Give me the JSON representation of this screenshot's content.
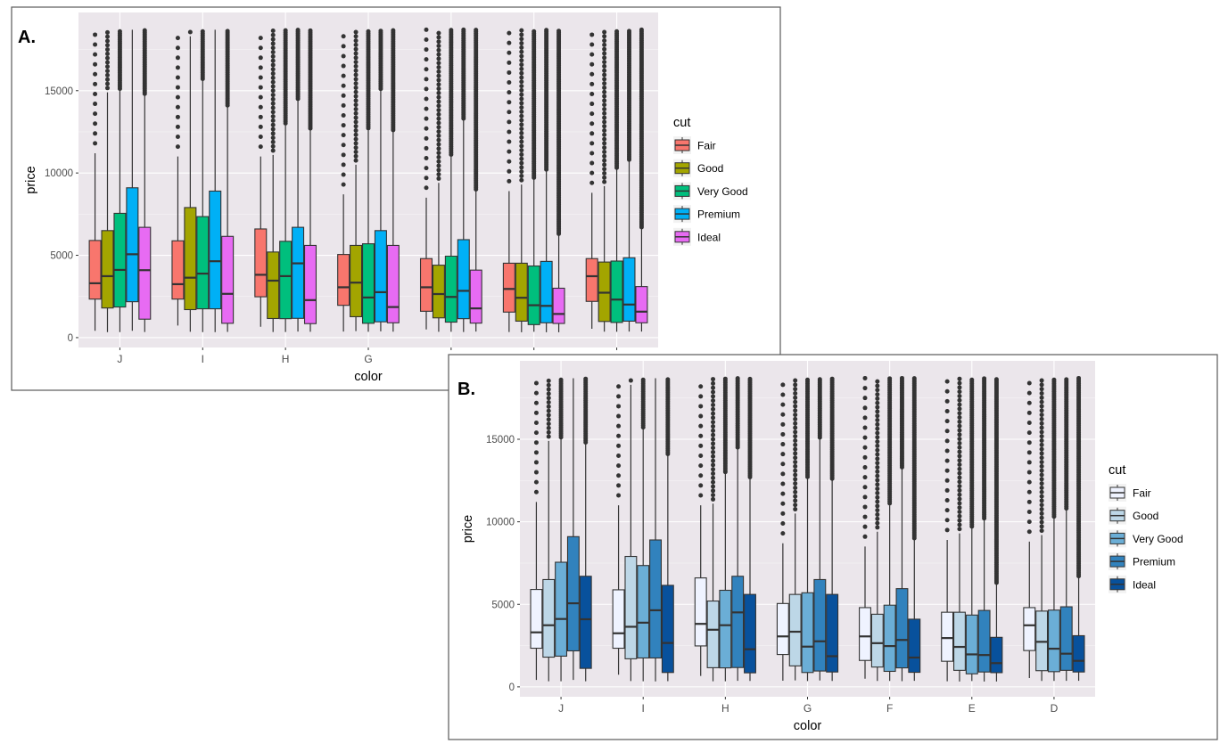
{
  "chart_data": [
    {
      "type": "boxplot",
      "panel_label": "A.",
      "xlabel": "color",
      "ylabel": "price",
      "categories": [
        "J",
        "I",
        "H",
        "G",
        "F",
        "E",
        "D"
      ],
      "yticks": [
        0,
        5000,
        10000,
        15000
      ],
      "ylim": [
        -600,
        19750
      ],
      "grid": true,
      "legend": {
        "title": "cut",
        "position": "right"
      },
      "series": [
        {
          "name": "Fair",
          "color": "#F8766D",
          "boxes": [
            [
              416,
              2340,
              3302,
              5900,
              11200
            ],
            [
              735,
              2340,
              3246,
              5880,
              11000
            ],
            [
              659,
              2480,
              3816,
              6600,
              11000
            ],
            [
              369,
              1960,
              3057,
              5050,
              8700
            ],
            [
              496,
              1600,
              3057,
              4800,
              8500
            ],
            [
              337,
              1550,
              2956,
              4520,
              8900
            ],
            [
              536,
              2200,
              3730,
              4800,
              8800
            ]
          ]
        },
        {
          "name": "Good",
          "color": "#A3A500",
          "boxes": [
            [
              335,
              1800,
              3733,
              6500,
              14900
            ],
            [
              351,
              1700,
              3640,
              7900,
              18300
            ],
            [
              337,
              1160,
              3460,
              5200,
              11100
            ],
            [
              394,
              1270,
              3340,
              5600,
              10500
            ],
            [
              357,
              1200,
              2647,
              4400,
              9400
            ],
            [
              327,
              1000,
              2420,
              4520,
              9300
            ],
            [
              361,
              980,
              2728,
              4590,
              9200
            ]
          ]
        },
        {
          "name": "Very Good",
          "color": "#00BF7D",
          "boxes": [
            [
              336,
              1860,
              4113,
              7550,
              15000
            ],
            [
              336,
              1750,
              3888,
              7350,
              15600
            ],
            [
              337,
              1150,
              3735,
              5850,
              12900
            ],
            [
              354,
              870,
              2437,
              5700,
              12600
            ],
            [
              357,
              940,
              2471,
              4950,
              11000
            ],
            [
              352,
              790,
              1967,
              4350,
              9600
            ],
            [
              357,
              920,
              2311,
              4650,
              10200
            ]
          ]
        },
        {
          "name": "Premium",
          "color": "#00B0F6",
          "boxes": [
            [
              416,
              2180,
              5063,
              9100,
              18700
            ],
            [
              334,
              1750,
              4640,
              8900,
              18700
            ],
            [
              368,
              1170,
              4511,
              6700,
              14400
            ],
            [
              382,
              960,
              2760,
              6500,
              15000
            ],
            [
              342,
              1150,
              2841,
              5950,
              13200
            ],
            [
              326,
              900,
              1928,
              4630,
              10100
            ],
            [
              367,
              1000,
              2009,
              4850,
              10700
            ]
          ]
        },
        {
          "name": "Ideal",
          "color": "#E76BF3",
          "boxes": [
            [
              340,
              1120,
              4096,
              6700,
              14700
            ],
            [
              348,
              870,
              2659,
              6150,
              14000
            ],
            [
              357,
              850,
              2278,
              5600,
              12600
            ],
            [
              361,
              900,
              1857,
              5600,
              12500
            ],
            [
              367,
              880,
              1775,
              4100,
              8900
            ],
            [
              326,
              860,
              1437,
              3000,
              6200
            ],
            [
              367,
              900,
              1576,
              3100,
              6600
            ]
          ]
        }
      ],
      "outlier_max": 18700
    },
    {
      "type": "boxplot",
      "panel_label": "B.",
      "xlabel": "color",
      "ylabel": "price",
      "categories": [
        "J",
        "I",
        "H",
        "G",
        "F",
        "E",
        "D"
      ],
      "yticks": [
        0,
        5000,
        10000,
        15000
      ],
      "ylim": [
        -600,
        19750
      ],
      "grid": true,
      "legend": {
        "title": "cut",
        "position": "right"
      },
      "series": [
        {
          "name": "Fair",
          "color": "#EFF3FF",
          "boxes": [
            [
              416,
              2340,
              3302,
              5900,
              11200
            ],
            [
              735,
              2340,
              3246,
              5880,
              11000
            ],
            [
              659,
              2480,
              3816,
              6600,
              11000
            ],
            [
              369,
              1960,
              3057,
              5050,
              8700
            ],
            [
              496,
              1600,
              3057,
              4800,
              8500
            ],
            [
              337,
              1550,
              2956,
              4520,
              8900
            ],
            [
              536,
              2200,
              3730,
              4800,
              8800
            ]
          ]
        },
        {
          "name": "Good",
          "color": "#BDD7E7",
          "boxes": [
            [
              335,
              1800,
              3733,
              6500,
              14900
            ],
            [
              351,
              1700,
              3640,
              7900,
              18300
            ],
            [
              337,
              1160,
              3460,
              5200,
              11100
            ],
            [
              394,
              1270,
              3340,
              5600,
              10500
            ],
            [
              357,
              1200,
              2647,
              4400,
              9400
            ],
            [
              327,
              1000,
              2420,
              4520,
              9300
            ],
            [
              361,
              980,
              2728,
              4590,
              9200
            ]
          ]
        },
        {
          "name": "Very Good",
          "color": "#6BAED6",
          "boxes": [
            [
              336,
              1860,
              4113,
              7550,
              15000
            ],
            [
              336,
              1750,
              3888,
              7350,
              15600
            ],
            [
              337,
              1150,
              3735,
              5850,
              12900
            ],
            [
              354,
              870,
              2437,
              5700,
              12600
            ],
            [
              357,
              940,
              2471,
              4950,
              11000
            ],
            [
              352,
              790,
              1967,
              4350,
              9600
            ],
            [
              357,
              920,
              2311,
              4650,
              10200
            ]
          ]
        },
        {
          "name": "Premium",
          "color": "#3182BD",
          "boxes": [
            [
              416,
              2180,
              5063,
              9100,
              18700
            ],
            [
              334,
              1750,
              4640,
              8900,
              18700
            ],
            [
              368,
              1170,
              4511,
              6700,
              14400
            ],
            [
              382,
              960,
              2760,
              6500,
              15000
            ],
            [
              342,
              1150,
              2841,
              5950,
              13200
            ],
            [
              326,
              900,
              1928,
              4630,
              10100
            ],
            [
              367,
              1000,
              2009,
              4850,
              10700
            ]
          ]
        },
        {
          "name": "Ideal",
          "color": "#08519C",
          "boxes": [
            [
              340,
              1120,
              4096,
              6700,
              14700
            ],
            [
              348,
              870,
              2659,
              6150,
              14000
            ],
            [
              357,
              850,
              2278,
              5600,
              12600
            ],
            [
              361,
              900,
              1857,
              5600,
              12500
            ],
            [
              367,
              880,
              1775,
              4100,
              8900
            ],
            [
              326,
              860,
              1437,
              3000,
              6200
            ],
            [
              367,
              900,
              1576,
              3100,
              6600
            ]
          ]
        }
      ],
      "outlier_max": 18700
    }
  ]
}
